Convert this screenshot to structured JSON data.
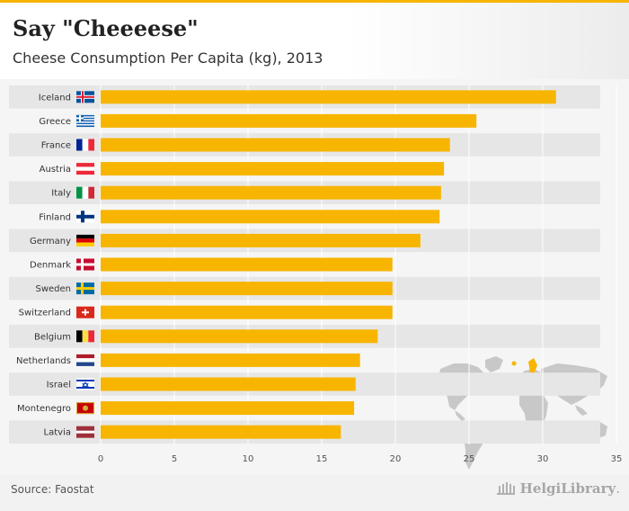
{
  "header": {
    "title": "Say \"Cheeeese\"",
    "subtitle": "Cheese Consumption Per Capita (kg), 2013"
  },
  "footer": {
    "source": "Source: Faostat",
    "brand_name": "HelgiLibrary",
    "brand_suffix": "."
  },
  "colors": {
    "bar": "#f7b500",
    "accent": "#f7b500",
    "row_band": "#e6e6e6",
    "grid": "#ffffff",
    "map_land": "#c8c8c8",
    "map_highlight": "#f7b500"
  },
  "icons": {
    "map": "world-map-icon",
    "brand": "library-building-icon"
  },
  "chart_data": {
    "type": "bar",
    "orientation": "horizontal",
    "title": "Say \"Cheeeese\"",
    "subtitle": "Cheese Consumption Per Capita (kg), 2013",
    "xlabel": "",
    "ylabel": "",
    "xlim": [
      0,
      35
    ],
    "ticks": [
      0,
      5,
      10,
      15,
      20,
      25,
      30,
      35
    ],
    "grid": true,
    "categories": [
      "Iceland",
      "Greece",
      "France",
      "Austria",
      "Italy",
      "Finland",
      "Germany",
      "Denmark",
      "Sweden",
      "Switzerland",
      "Belgium",
      "Netherlands",
      "Israel",
      "Montenegro",
      "Latvia"
    ],
    "values": [
      30.9,
      25.5,
      23.7,
      23.3,
      23.1,
      23.0,
      21.7,
      19.8,
      19.8,
      19.8,
      18.8,
      17.6,
      17.3,
      17.2,
      16.3
    ],
    "flags": [
      "iceland",
      "greece",
      "france",
      "austria",
      "italy",
      "finland",
      "germany",
      "denmark",
      "sweden",
      "switzerland",
      "belgium",
      "netherlands",
      "israel",
      "montenegro",
      "latvia"
    ]
  }
}
